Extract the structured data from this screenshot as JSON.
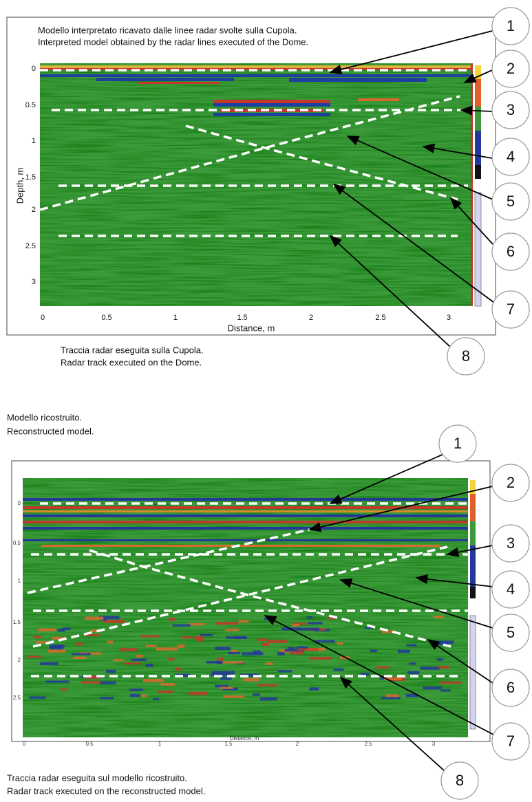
{
  "top_panel": {
    "title": [
      "Modello interpretato ricavato dalle linee radar svolte sulla Cupola.",
      "Interpreted model obtained by the radar lines executed of the Dome."
    ],
    "y_label": "Depth, m",
    "x_label": "Distance, m",
    "x_ticks": [
      "0",
      "0.5",
      "1",
      "1.5",
      "2",
      "2.5",
      "3"
    ],
    "y_ticks": [
      "0",
      "0.5",
      "1",
      "1.5",
      "2",
      "2.5",
      "3"
    ],
    "caption": [
      "Traccia radar eseguita sulla Cupola.",
      "Radar track executed on the Dome."
    ],
    "callouts": [
      "1",
      "2",
      "3",
      "4",
      "5",
      "6",
      "7",
      "8"
    ]
  },
  "bottom_panel": {
    "heading": [
      "Modello ricostruito.",
      "Reconstructed model."
    ],
    "x_label": "Distance, m",
    "x_ticks": [
      "0",
      "0.5",
      "1",
      "1.5",
      "2",
      "2.5",
      "3"
    ],
    "y_ticks": [
      "0",
      "0.5",
      "1",
      "1.5",
      "2",
      "2.5"
    ],
    "caption": [
      "Traccia radar eseguita sul modello ricostruito.",
      "Radar track executed on the reconstructed model."
    ],
    "callouts": [
      "1",
      "2",
      "3",
      "4",
      "5",
      "6",
      "7",
      "8"
    ]
  }
}
